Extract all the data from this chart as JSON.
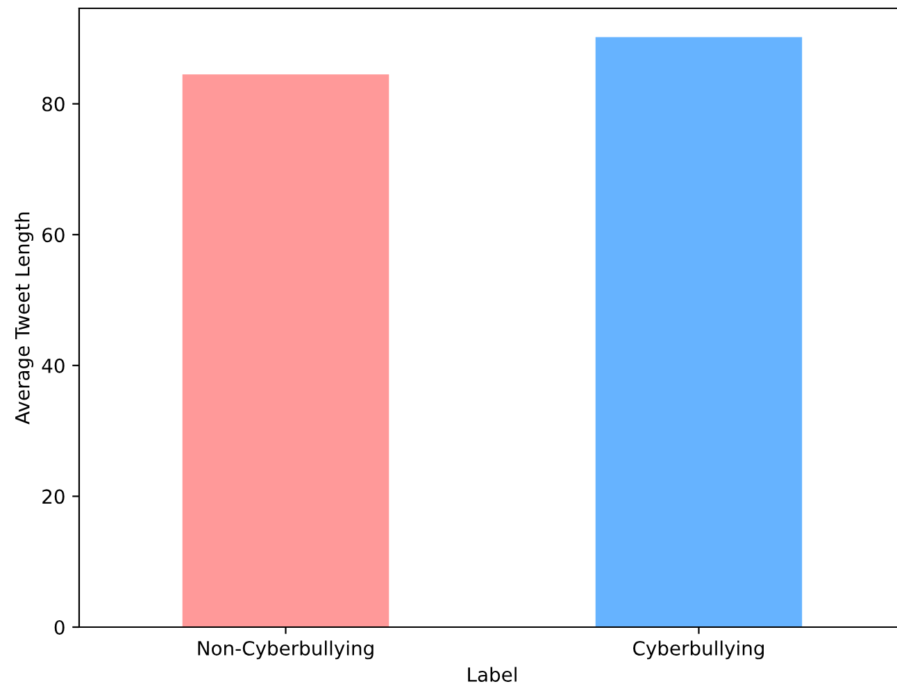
{
  "chart_data": {
    "type": "bar",
    "xlabel": "Label",
    "ylabel": "Average Tweet Length",
    "categories": [
      "Non-Cyberbullying",
      "Cyberbullying"
    ],
    "values": [
      84.5,
      90.2
    ],
    "colors": [
      "#ff9999",
      "#66b3ff"
    ],
    "ylim": [
      0,
      94.6
    ],
    "yticks": [
      0,
      20,
      40,
      60,
      80
    ],
    "grid": false
  }
}
